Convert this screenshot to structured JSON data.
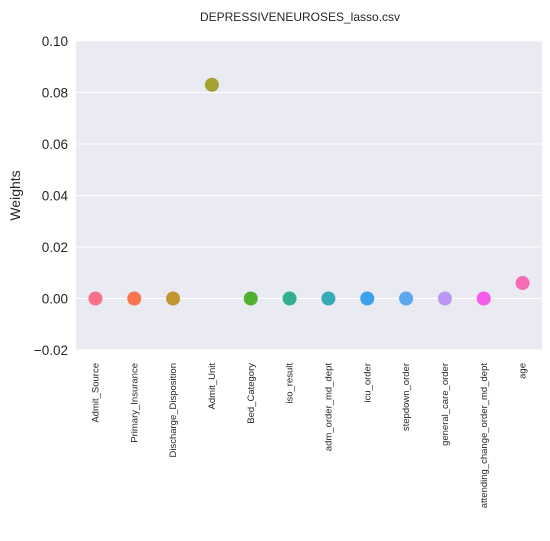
{
  "chart_data": {
    "type": "scatter",
    "title": "DEPRESSIVENEUROSES_lasso.csv",
    "xlabel": "",
    "ylabel": "Weights",
    "ylim": [
      -0.02,
      0.1
    ],
    "yticks": [
      "−0.02",
      "0.00",
      "0.02",
      "0.04",
      "0.06",
      "0.08",
      "0.10"
    ],
    "grid": true,
    "legend": "none",
    "categories": [
      "Admit_Source",
      "Primary_Insurance",
      "Discharge_Disposition",
      "Admit_Unit",
      "Bed_Category",
      "iso_result",
      "adm_order_md_dept",
      "icu_order",
      "stepdown_order",
      "general_care_order",
      "attending_change_order_md_dept",
      "age"
    ],
    "values": [
      0.0,
      0.0,
      0.0,
      0.083,
      0.0,
      0.0,
      0.0,
      0.0,
      0.0,
      0.0,
      0.0,
      0.006
    ],
    "colors": [
      "#f77189",
      "#f7754f",
      "#c39532",
      "#a4a031",
      "#50b131",
      "#34ae91",
      "#37abb5",
      "#3ba3ec",
      "#5ba8f0",
      "#bb97f4",
      "#f45deb",
      "#f66bb4"
    ],
    "background": "#eaeaf2"
  }
}
